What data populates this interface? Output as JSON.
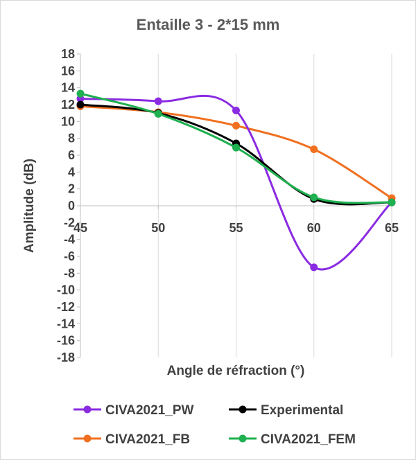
{
  "chart_data": {
    "type": "line",
    "title": "Entaille 3 - 2*15 mm",
    "xlabel": "Angle de réfraction (°)",
    "ylabel": "Amplitude (dB)",
    "x": [
      45,
      50,
      55,
      60,
      65
    ],
    "x_ticks": [
      "45",
      "50",
      "55",
      "60",
      "65"
    ],
    "y_ticks": [
      "18",
      "16",
      "14",
      "12",
      "10",
      "8",
      "6",
      "4",
      "2",
      "0",
      "-2",
      "-4",
      "-6",
      "-8",
      "-10",
      "-12",
      "-14",
      "-16",
      "-18"
    ],
    "xlim": [
      45,
      65
    ],
    "ylim": [
      -18,
      18
    ],
    "grid": "vertical",
    "legend_position": "bottom",
    "series": [
      {
        "name": "CIVA2021_PW",
        "color": "#8a2be2",
        "values": [
          12.7,
          12.4,
          11.3,
          -7.3,
          0.4
        ]
      },
      {
        "name": "Experimental",
        "color": "#000000",
        "values": [
          12.0,
          11.0,
          7.4,
          0.8,
          0.4
        ]
      },
      {
        "name": "CIVA2021_FB",
        "color": "#f07020",
        "values": [
          11.8,
          11.1,
          9.5,
          6.7,
          0.9
        ]
      },
      {
        "name": "CIVA2021_FEM",
        "color": "#1fb04f",
        "values": [
          13.3,
          10.9,
          6.9,
          1.0,
          0.4
        ]
      }
    ]
  }
}
